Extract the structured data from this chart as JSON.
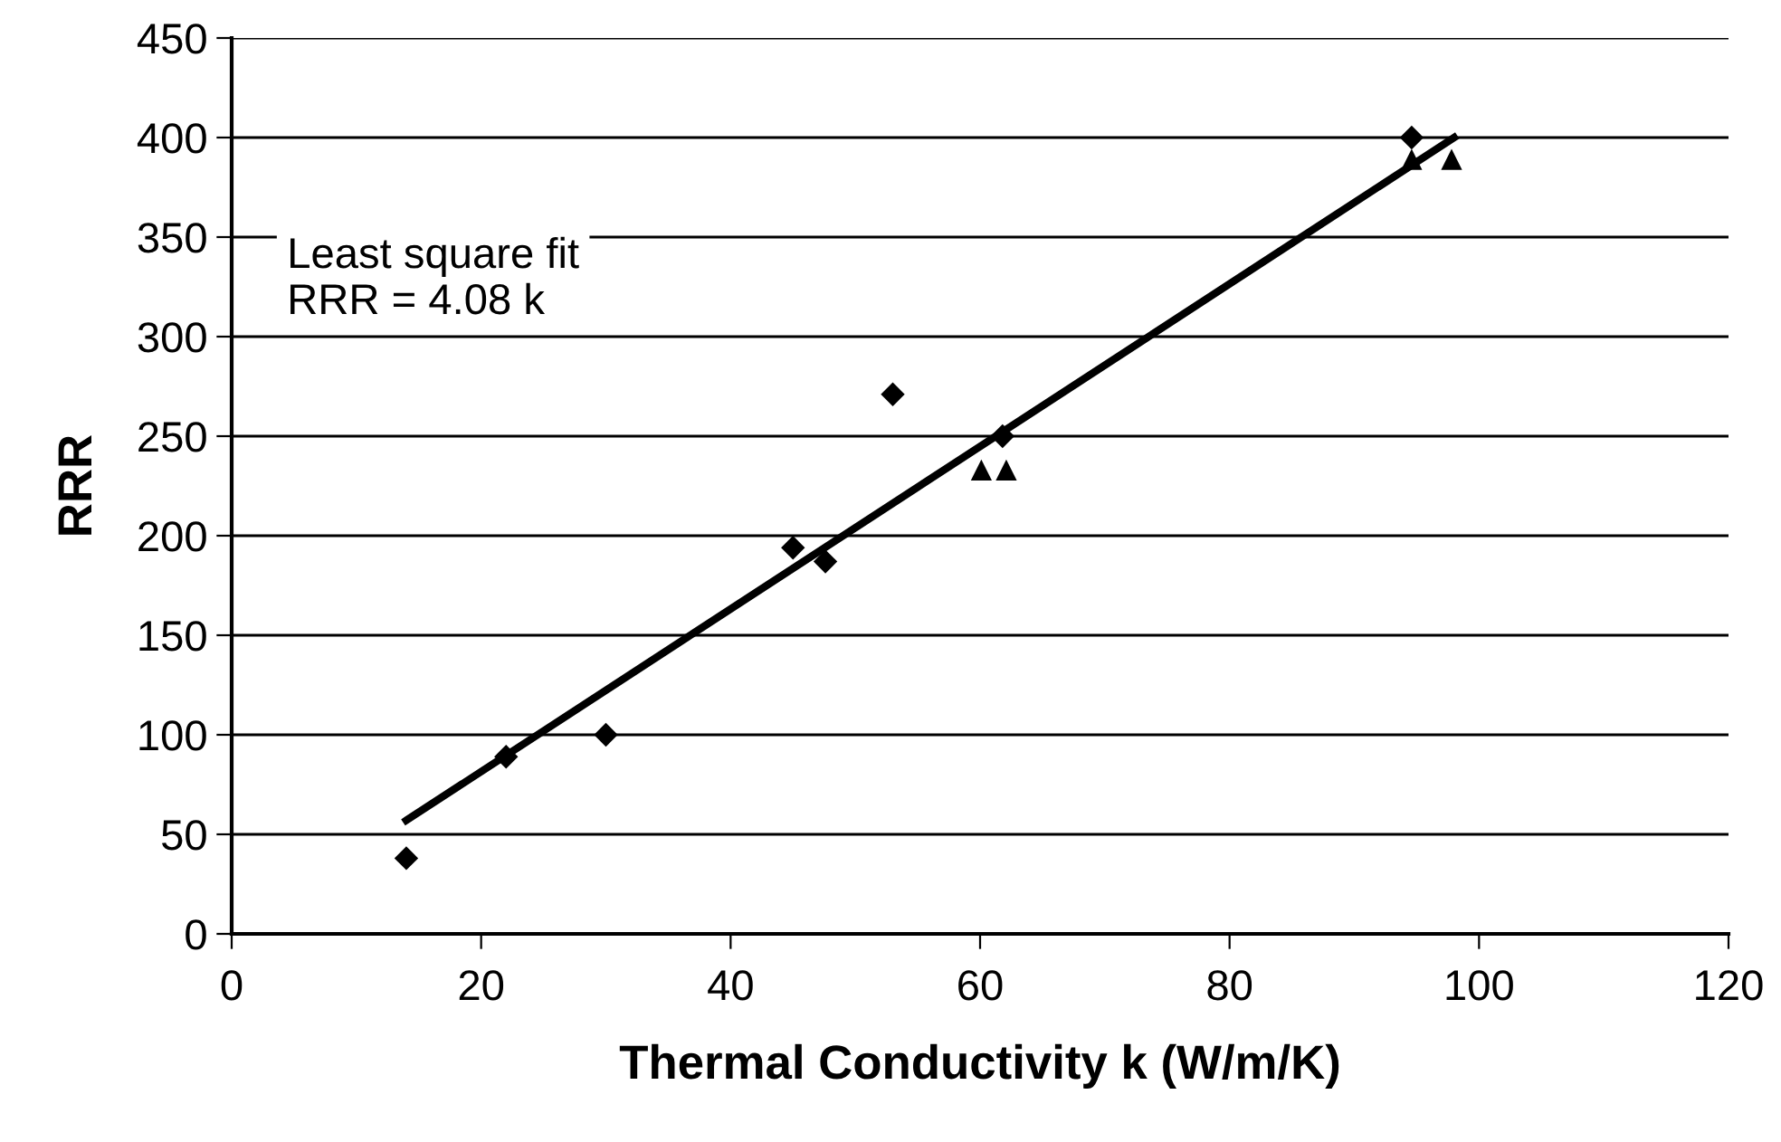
{
  "chart_data": {
    "type": "scatter",
    "xlabel": "Thermal Conductivity k (W/m/K)",
    "ylabel": "RRR",
    "xlim": [
      0,
      120
    ],
    "xticks": [
      0,
      20,
      40,
      60,
      80,
      100,
      120
    ],
    "ylim": [
      0,
      450
    ],
    "yticks": [
      0,
      50,
      100,
      150,
      200,
      250,
      300,
      350,
      400,
      450
    ],
    "grid": "y",
    "series": [
      {
        "marker": "diamond",
        "color": "#000000",
        "x": [
          14,
          22,
          30,
          45,
          47.6,
          53,
          61.8,
          94.6
        ],
        "values": [
          38,
          89,
          100,
          194,
          187,
          271,
          250,
          400
        ]
      },
      {
        "marker": "triangle",
        "color": "#000000",
        "x": [
          60.1,
          62.1,
          94.6,
          97.8
        ],
        "values": [
          233,
          233,
          389,
          389
        ]
      },
      {
        "type": "line",
        "marker": "none",
        "color": "#000000",
        "x": [
          14,
          98
        ],
        "values": [
          57,
          400
        ]
      }
    ],
    "annotations": [
      "Least square fit\nRRR = 4.08 k"
    ]
  }
}
